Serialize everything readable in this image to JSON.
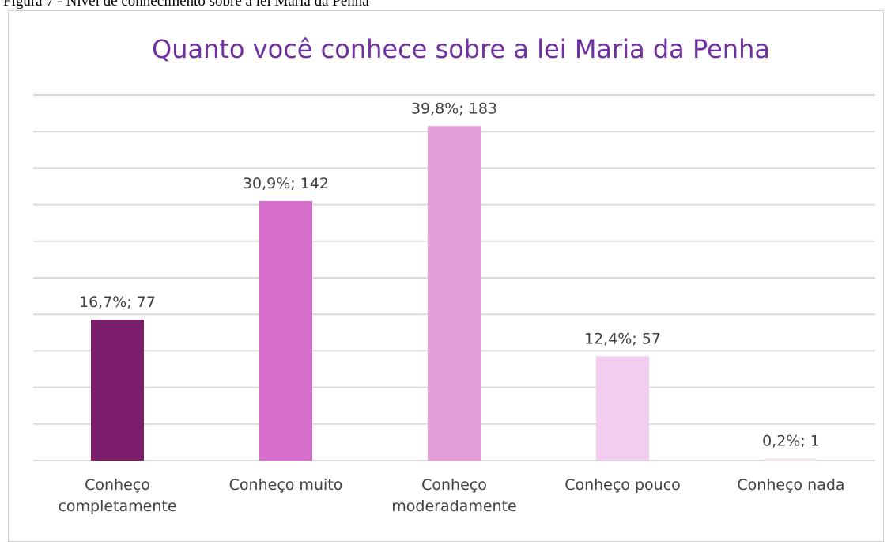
{
  "caption": "Figura 7 - Nível de conhecimento sobre a lei Maria da Penha",
  "chart_data": {
    "type": "bar",
    "title": "Quanto você conhece sobre a lei Maria da Penha",
    "categories": [
      "Conheço completamente",
      "Conheço muito",
      "Conheço moderadamente",
      "Conheço pouco",
      "Conheço nada"
    ],
    "values": [
      77,
      142,
      183,
      57,
      1
    ],
    "value_labels": [
      "16,7%; 77",
      "30,9%; 142",
      "39,8%; 183",
      "12,4%; 57",
      "0,2%; 1"
    ],
    "colors": [
      "#7b1f6a",
      "#d66fcb",
      "#e39ddb",
      "#f2cdef",
      "#f7e3f4"
    ],
    "ylim": [
      0,
      200
    ],
    "yticks": [
      0,
      20,
      40,
      60,
      80,
      100,
      120,
      140,
      160,
      180,
      200
    ],
    "grid": true
  }
}
